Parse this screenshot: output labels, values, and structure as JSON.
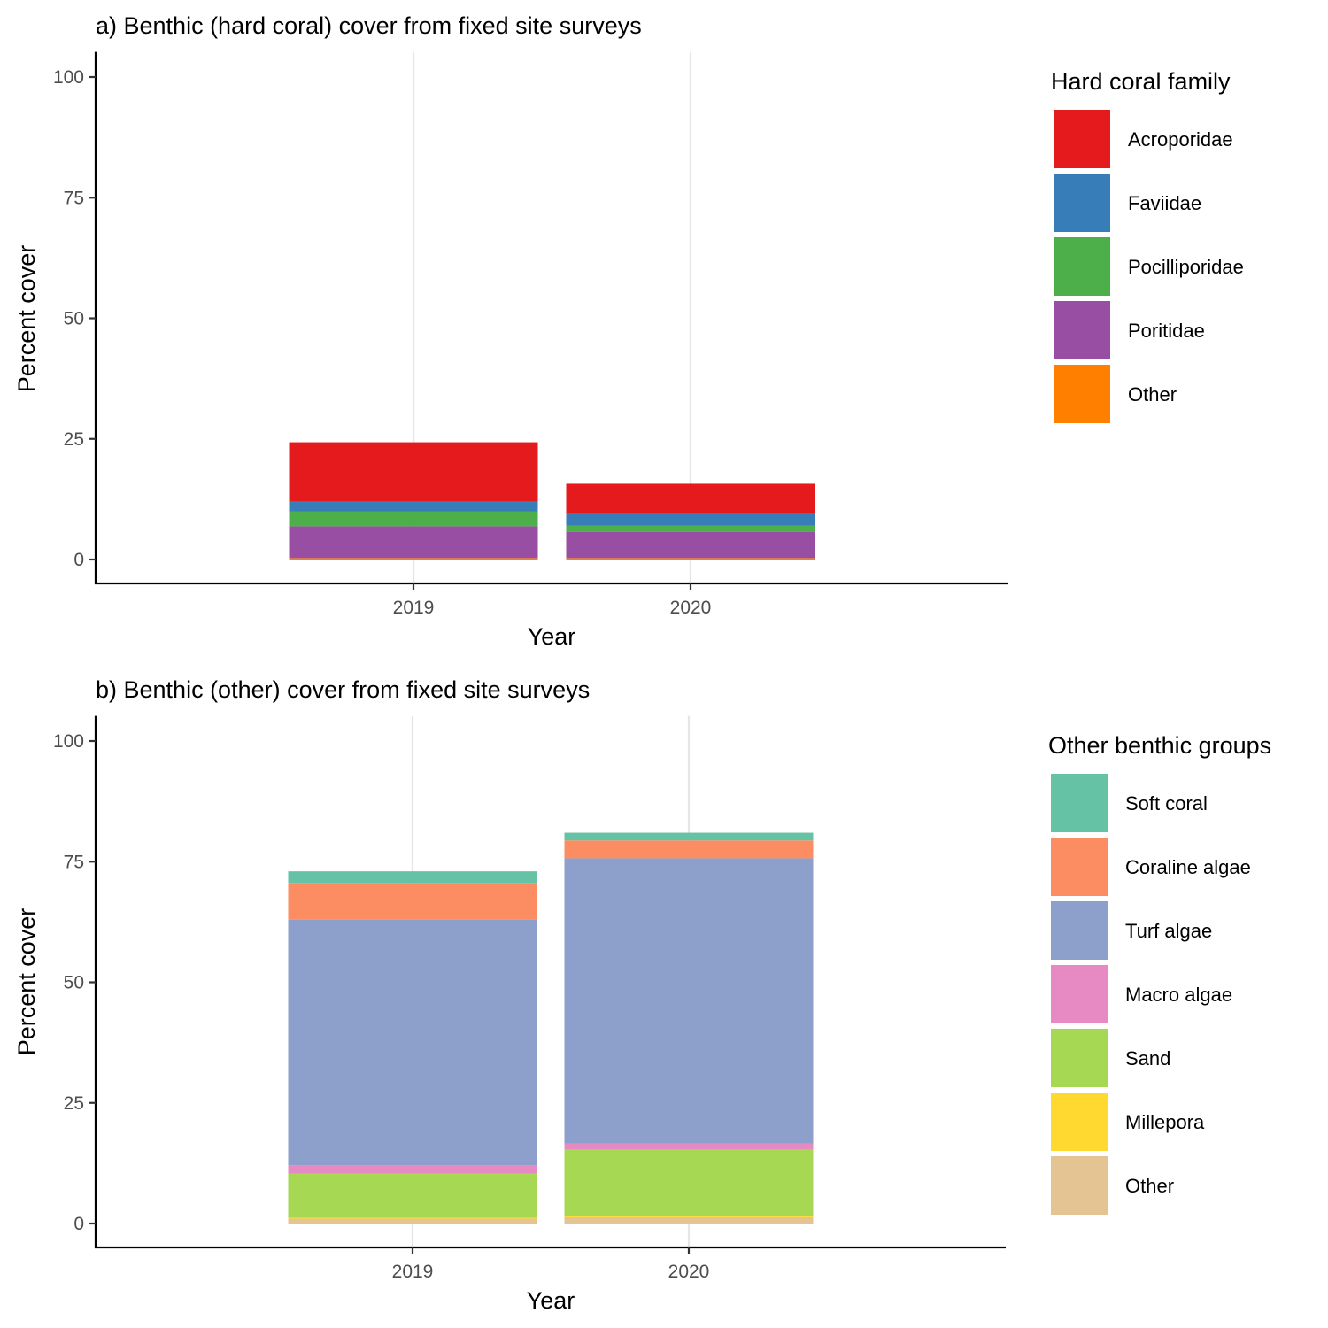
{
  "chart_data": [
    {
      "type": "bar",
      "stacked": true,
      "title": "a) Benthic (hard coral) cover from fixed site surveys",
      "xlabel": "Year",
      "ylabel": "Percent cover",
      "categories": [
        "2019",
        "2020"
      ],
      "ylim": [
        0,
        100
      ],
      "yticks": [
        0,
        25,
        50,
        75,
        100
      ],
      "grid": "vertical major only",
      "legend_title": "Hard coral family",
      "legend_position": "right",
      "series": [
        {
          "name": "Acroporidae",
          "color": "#E41A1C",
          "values": [
            12.3,
            6.0
          ]
        },
        {
          "name": "Faviidae",
          "color": "#377EB8",
          "values": [
            2.0,
            2.7
          ]
        },
        {
          "name": "Pocilliporidae",
          "color": "#4DAF4A",
          "values": [
            3.1,
            1.3
          ]
        },
        {
          "name": "Poritidae",
          "color": "#984EA3",
          "values": [
            6.6,
            5.4
          ]
        },
        {
          "name": "Other",
          "color": "#FF7F00",
          "values": [
            0.3,
            0.3
          ]
        }
      ]
    },
    {
      "type": "bar",
      "stacked": true,
      "title": "b) Benthic (other) cover from fixed site surveys",
      "xlabel": "Year",
      "ylabel": "Percent cover",
      "categories": [
        "2019",
        "2020"
      ],
      "ylim": [
        0,
        100
      ],
      "yticks": [
        0,
        25,
        50,
        75,
        100
      ],
      "grid": "vertical major only",
      "legend_title": "Other benthic groups",
      "legend_position": "right",
      "series": [
        {
          "name": "Soft coral",
          "color": "#66C2A5",
          "values": [
            2.4,
            1.6
          ]
        },
        {
          "name": "Coraline algae",
          "color": "#FC8D62",
          "values": [
            7.6,
            3.7
          ]
        },
        {
          "name": "Turf algae",
          "color": "#8DA0CB",
          "values": [
            50.9,
            59.1
          ]
        },
        {
          "name": "Macro algae",
          "color": "#E78AC3",
          "values": [
            1.8,
            1.3
          ]
        },
        {
          "name": "Sand",
          "color": "#A6D854",
          "values": [
            9.1,
            13.8
          ]
        },
        {
          "name": "Millepora",
          "color": "#FFD92F",
          "values": [
            0.2,
            0.2
          ]
        },
        {
          "name": "Other",
          "color": "#E5C494",
          "values": [
            1.0,
            1.3
          ]
        }
      ]
    }
  ]
}
